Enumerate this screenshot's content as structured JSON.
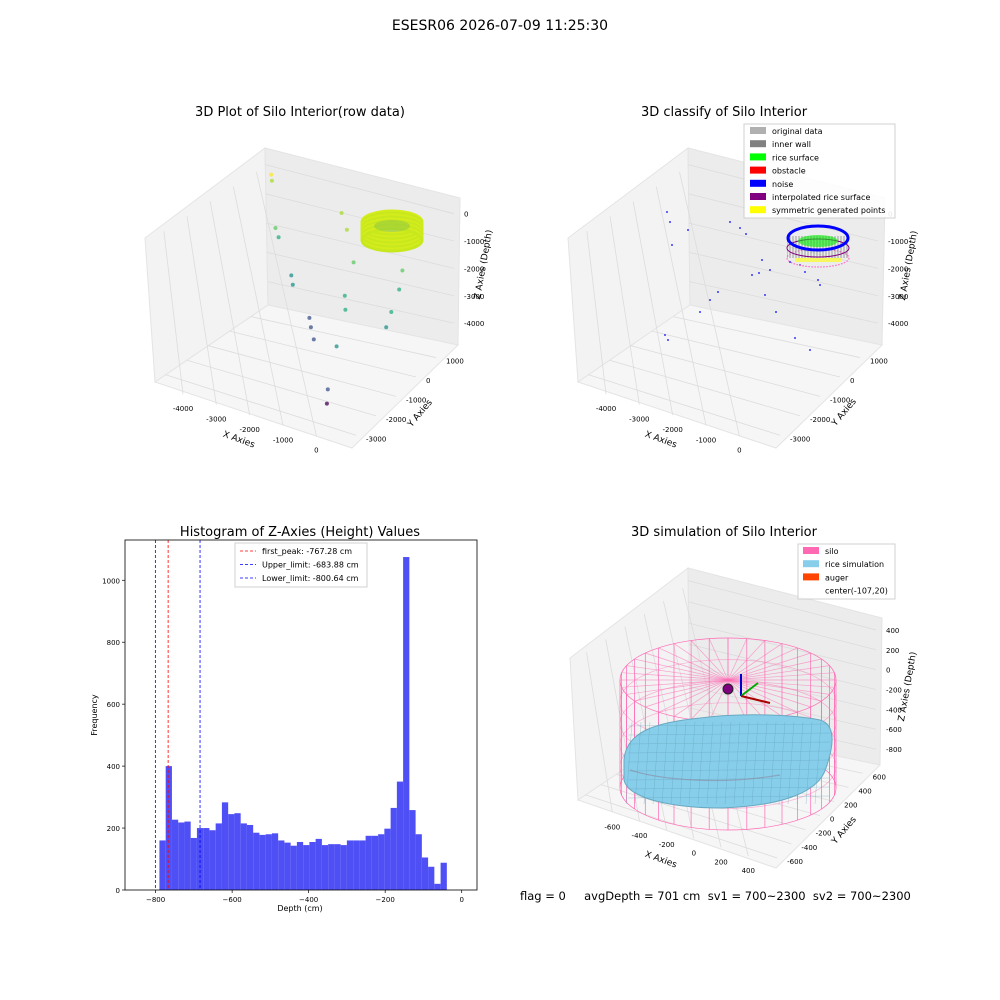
{
  "suptitle": "ESESR06 2026-07-09 11:25:30",
  "footer": "flag = 0     avgDepth = 701 cm  sv1 = 700~2300  sv2 = 700~2300",
  "chart_data": [
    {
      "type": "scatter3d",
      "title": "3D Plot of Silo Interior(row data)",
      "xlabel": "X Axies",
      "ylabel": "Y Axies",
      "zlabel": "Z Axies (Depth)",
      "xticks": [
        "-4000",
        "-3000",
        "-2000",
        "-1000",
        "0"
      ],
      "yticks": [
        "-3000",
        "-2000",
        "-1000",
        "0",
        "1000"
      ],
      "zticks": [
        "0",
        "-1000",
        "-2000",
        "-3000",
        "-4000"
      ],
      "xlim": [
        -4500,
        500
      ],
      "ylim": [
        -3200,
        1500
      ],
      "zlim": [
        -4500,
        200
      ],
      "colormap": "viridis",
      "points": [
        {
          "x": -4100,
          "y": 900,
          "z": -100
        },
        {
          "x": -4050,
          "y": 850,
          "z": -250
        },
        {
          "x": -3800,
          "y": 600,
          "z": -1500
        },
        {
          "x": -3750,
          "y": 650,
          "z": -1800
        },
        {
          "x": -3200,
          "y": 300,
          "z": -2600
        },
        {
          "x": -3100,
          "y": 200,
          "z": -2800
        },
        {
          "x": -2600,
          "y": 100,
          "z": -3600
        },
        {
          "x": -2500,
          "y": 0,
          "z": -3800
        },
        {
          "x": -2300,
          "y": -200,
          "z": -4000
        },
        {
          "x": -2000,
          "y": 500,
          "z": -300
        },
        {
          "x": -1800,
          "y": 400,
          "z": -700
        },
        {
          "x": -1500,
          "y": 200,
          "z": -1500
        },
        {
          "x": -1300,
          "y": -500,
          "z": -2100
        },
        {
          "x": -1100,
          "y": -800,
          "z": -2300
        },
        {
          "x": -900,
          "y": -1500,
          "z": -3000
        },
        {
          "x": -700,
          "y": -2200,
          "z": -3900
        },
        {
          "x": -600,
          "y": -2400,
          "z": -4200
        },
        {
          "x": -500,
          "y": 700,
          "z": -800
        },
        {
          "x": -400,
          "y": 500,
          "z": -1500
        },
        {
          "x": -300,
          "y": 200,
          "z": -1900
        },
        {
          "x": -200,
          "y": -300,
          "z": -2300
        },
        {
          "x": -150,
          "y": -600,
          "z": -2600
        }
      ],
      "ring": {
        "x_center": -100,
        "y_center": 20,
        "radius": 700,
        "z_top": 0,
        "z_bottom": -900,
        "color": "#d4ec1c"
      }
    },
    {
      "type": "scatter3d",
      "title": "3D classify of Silo Interior",
      "xlabel": "X Axies",
      "ylabel": "Y Axies",
      "zlabel": "Z Axies (Depth)",
      "xticks": [
        "-4000",
        "-3000",
        "-2000",
        "-1000",
        "0"
      ],
      "yticks": [
        "-3000",
        "-2000",
        "-1000",
        "0",
        "1000"
      ],
      "zticks": [
        "0",
        "-1000",
        "-2000",
        "-3000",
        "-4000"
      ],
      "legend": [
        {
          "label": "original data",
          "color": "#b0b0b0"
        },
        {
          "label": "inner wall",
          "color": "#808080"
        },
        {
          "label": "rice surface",
          "color": "#00ff00"
        },
        {
          "label": "obstacle",
          "color": "#ff0000"
        },
        {
          "label": "noise",
          "color": "#0000ff"
        },
        {
          "label": "interpolated rice surface",
          "color": "#800080"
        },
        {
          "label": "symmetric generated points",
          "color": "#ffff00"
        }
      ],
      "legend_position": "top-right"
    },
    {
      "type": "bar",
      "title": "Histogram of Z-Axies (Height) Values",
      "xlabel": "Depth (cm)",
      "ylabel": "Frequency",
      "xlim": [
        -880,
        40
      ],
      "ylim": [
        0,
        1130
      ],
      "xticks": [
        -800,
        -600,
        -400,
        -200,
        0
      ],
      "yticks": [
        0,
        200,
        400,
        600,
        800,
        1000
      ],
      "bar_color": "#4f4ff6",
      "bin_start": -790,
      "bin_width": 16.33,
      "values": [
        160,
        400,
        227,
        218,
        221,
        168,
        200,
        200,
        193,
        215,
        283,
        245,
        248,
        215,
        210,
        185,
        178,
        180,
        183,
        160,
        153,
        143,
        155,
        145,
        155,
        165,
        145,
        148,
        148,
        145,
        160,
        160,
        160,
        175,
        175,
        180,
        198,
        265,
        350,
        1075,
        258,
        180,
        105,
        75,
        20,
        88
      ],
      "vlines": [
        {
          "label": "first_peak: -767.28 cm",
          "x": -767.28,
          "color": "#ff0000"
        },
        {
          "label": "Upper_limit: -683.88 cm",
          "x": -683.88,
          "color": "#0000ff"
        },
        {
          "label": "Lower_limit: -800.64 cm",
          "x": -800.64,
          "color": "#0000ff"
        }
      ]
    },
    {
      "type": "surface3d",
      "title": "3D simulation of Silo Interior",
      "xlabel": "X Axies",
      "ylabel": "Y Axies",
      "zlabel": "Z Axies (Depth)",
      "xticks": [
        "-600",
        "-400",
        "-200",
        "0",
        "200",
        "400"
      ],
      "yticks": [
        "-600",
        "-400",
        "-200",
        "0",
        "200",
        "400",
        "600"
      ],
      "zticks": [
        "400",
        "200",
        "0",
        "-200",
        "-400",
        "-600",
        "-800"
      ],
      "legend": [
        {
          "label": "silo",
          "color": "#ff69b4"
        },
        {
          "label": "rice simulation",
          "color": "#87ceeb"
        },
        {
          "label": "auger",
          "color": "#ff4500"
        },
        {
          "label": "center(-107,20)",
          "color": null
        }
      ],
      "legend_position": "top-right"
    }
  ]
}
